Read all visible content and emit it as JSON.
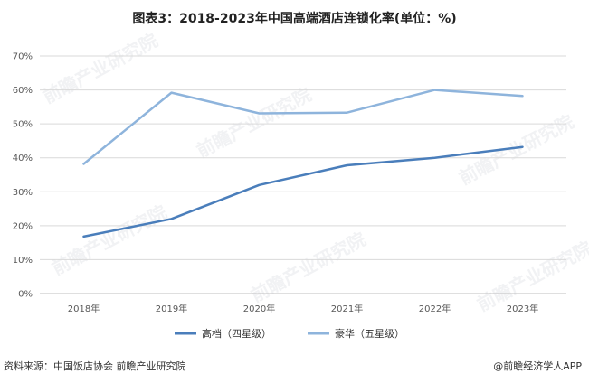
{
  "chart_data": {
    "type": "line",
    "title": "图表3：2018-2023年中国高端酒店连锁化率(单位：%)",
    "categories": [
      "2018年",
      "2019年",
      "2020年",
      "2021年",
      "2022年",
      "2023年"
    ],
    "yticks": [
      "0%",
      "10%",
      "20%",
      "30%",
      "40%",
      "50%",
      "60%",
      "70%"
    ],
    "ylim": [
      0,
      70
    ],
    "grid": true,
    "legend_position": "bottom",
    "series": [
      {
        "name": "高档（四星级）",
        "color": "#4a7ebb",
        "values": [
          16.8,
          22.0,
          32.0,
          37.8,
          40.0,
          43.2
        ]
      },
      {
        "name": "豪华（五星级）",
        "color": "#8eb4dc",
        "values": [
          38.2,
          59.2,
          53.1,
          53.3,
          60.0,
          58.2
        ]
      }
    ]
  },
  "footer": {
    "source": "资料来源：中国饭店协会 前瞻产业研究院",
    "brand": "@前瞻经济学人APP"
  },
  "watermark": "前瞻产业研究院"
}
